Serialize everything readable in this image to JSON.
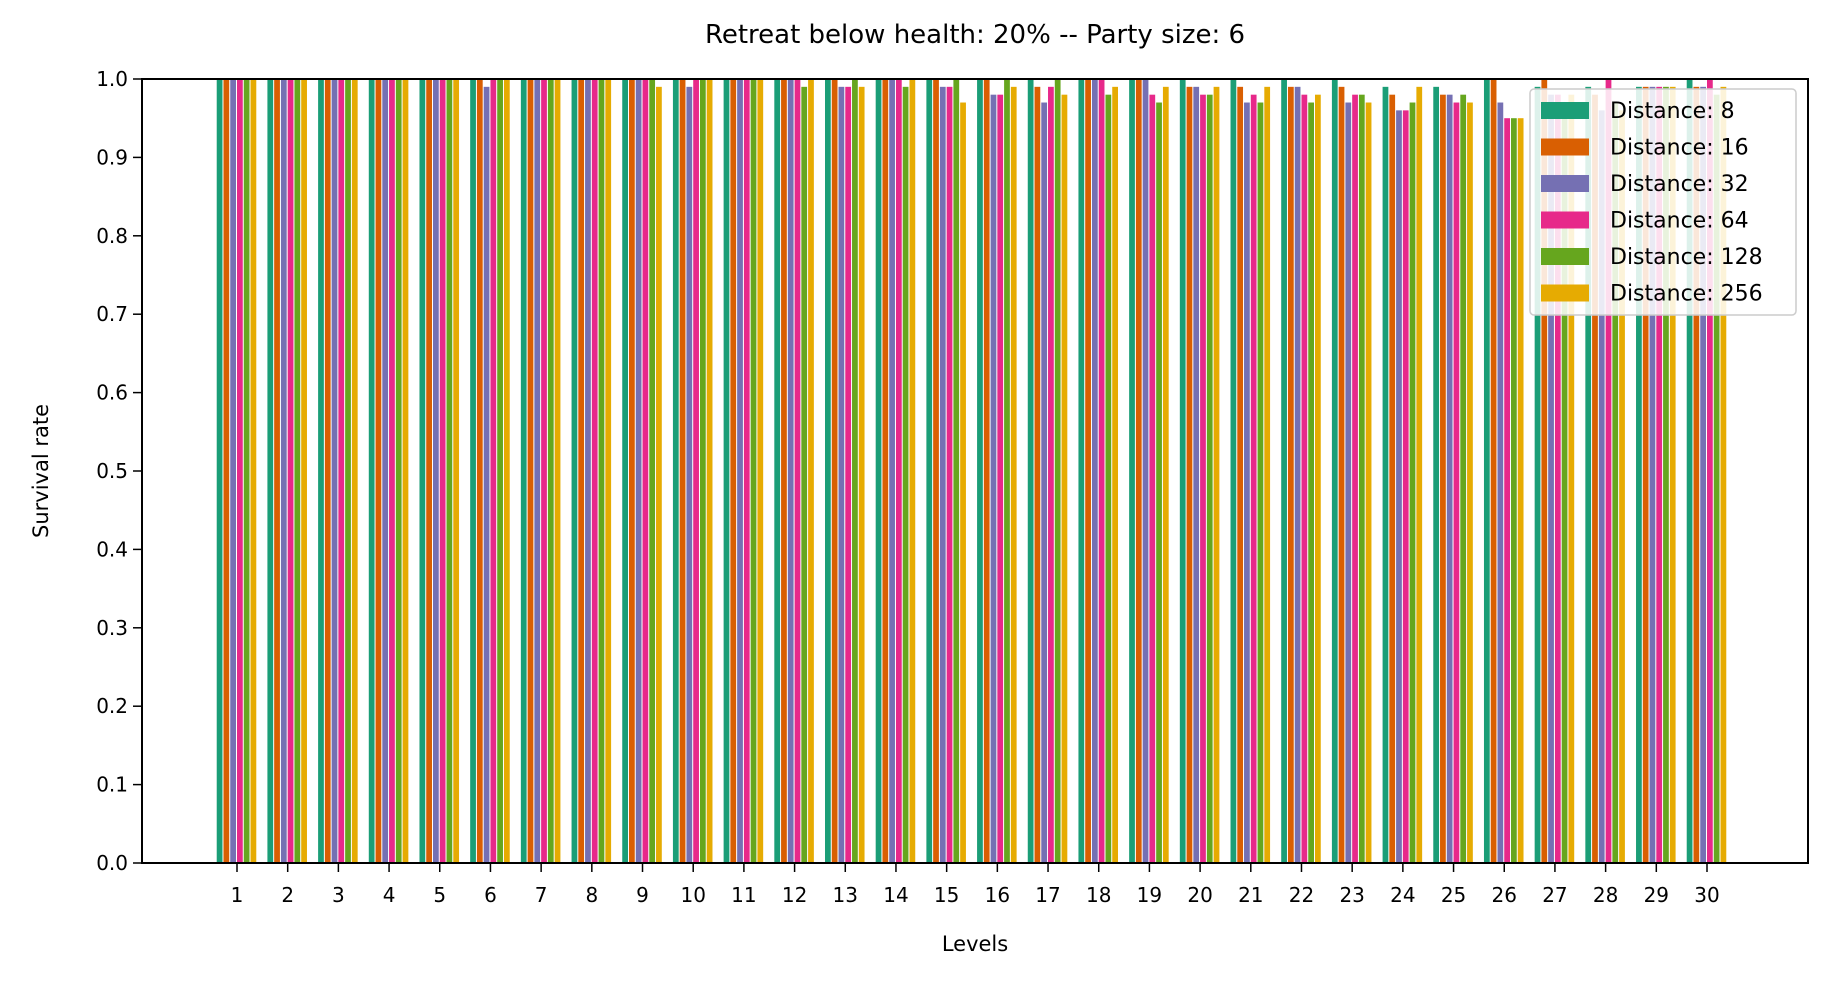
{
  "chart_data": {
    "type": "bar",
    "title": "Retreat below health: 20% -- Party size: 6",
    "xlabel": "Levels",
    "ylabel": "Survival rate",
    "ylim": [
      0.0,
      1.0
    ],
    "yticks": [
      "0.0",
      "0.1",
      "0.2",
      "0.3",
      "0.4",
      "0.5",
      "0.6",
      "0.7",
      "0.8",
      "0.9",
      "1.0"
    ],
    "grid": false,
    "legend_position": "top-right",
    "categories": [
      "1",
      "2",
      "3",
      "4",
      "5",
      "6",
      "7",
      "8",
      "9",
      "10",
      "11",
      "12",
      "13",
      "14",
      "15",
      "16",
      "17",
      "18",
      "19",
      "20",
      "21",
      "22",
      "23",
      "24",
      "25",
      "26",
      "27",
      "28",
      "29",
      "30"
    ],
    "series": [
      {
        "name": "Distance: 8",
        "color": "#1b9e77",
        "values": [
          1.0,
          1.0,
          1.0,
          1.0,
          1.0,
          1.0,
          1.0,
          1.0,
          1.0,
          1.0,
          1.0,
          1.0,
          1.0,
          1.0,
          1.0,
          1.0,
          1.0,
          1.0,
          1.0,
          1.0,
          1.0,
          1.0,
          1.0,
          0.99,
          0.99,
          1.0,
          0.99,
          0.99,
          0.99,
          1.0
        ]
      },
      {
        "name": "Distance: 16",
        "color": "#d95f02",
        "values": [
          1.0,
          1.0,
          1.0,
          1.0,
          1.0,
          1.0,
          1.0,
          1.0,
          1.0,
          1.0,
          1.0,
          1.0,
          1.0,
          1.0,
          1.0,
          1.0,
          0.99,
          1.0,
          1.0,
          0.99,
          0.99,
          0.99,
          0.99,
          0.98,
          0.98,
          1.0,
          1.0,
          0.98,
          0.99,
          0.99
        ]
      },
      {
        "name": "Distance: 32",
        "color": "#7570b3",
        "values": [
          1.0,
          1.0,
          1.0,
          1.0,
          1.0,
          0.99,
          1.0,
          1.0,
          1.0,
          0.99,
          1.0,
          1.0,
          0.99,
          1.0,
          0.99,
          0.98,
          0.97,
          1.0,
          1.0,
          0.99,
          0.97,
          0.99,
          0.97,
          0.96,
          0.98,
          0.97,
          0.98,
          0.96,
          0.99,
          0.99
        ]
      },
      {
        "name": "Distance: 64",
        "color": "#e7298a",
        "values": [
          1.0,
          1.0,
          1.0,
          1.0,
          1.0,
          1.0,
          1.0,
          1.0,
          1.0,
          1.0,
          1.0,
          1.0,
          0.99,
          1.0,
          0.99,
          0.98,
          0.99,
          1.0,
          0.98,
          0.98,
          0.98,
          0.98,
          0.98,
          0.96,
          0.97,
          0.95,
          0.98,
          1.0,
          0.99,
          1.0
        ]
      },
      {
        "name": "Distance: 128",
        "color": "#66a61e",
        "values": [
          1.0,
          1.0,
          1.0,
          1.0,
          1.0,
          1.0,
          1.0,
          1.0,
          1.0,
          1.0,
          1.0,
          0.99,
          1.0,
          0.99,
          1.0,
          1.0,
          1.0,
          0.98,
          0.97,
          0.98,
          0.97,
          0.97,
          0.98,
          0.97,
          0.98,
          0.95,
          0.97,
          0.97,
          0.99,
          0.98
        ]
      },
      {
        "name": "Distance: 256",
        "color": "#e6ab02",
        "values": [
          1.0,
          1.0,
          1.0,
          1.0,
          1.0,
          1.0,
          1.0,
          1.0,
          0.99,
          1.0,
          1.0,
          1.0,
          0.99,
          1.0,
          0.97,
          0.99,
          0.98,
          0.99,
          0.99,
          0.99,
          0.99,
          0.98,
          0.97,
          0.99,
          0.97,
          0.95,
          0.98,
          0.96,
          0.99,
          0.99
        ]
      }
    ]
  }
}
